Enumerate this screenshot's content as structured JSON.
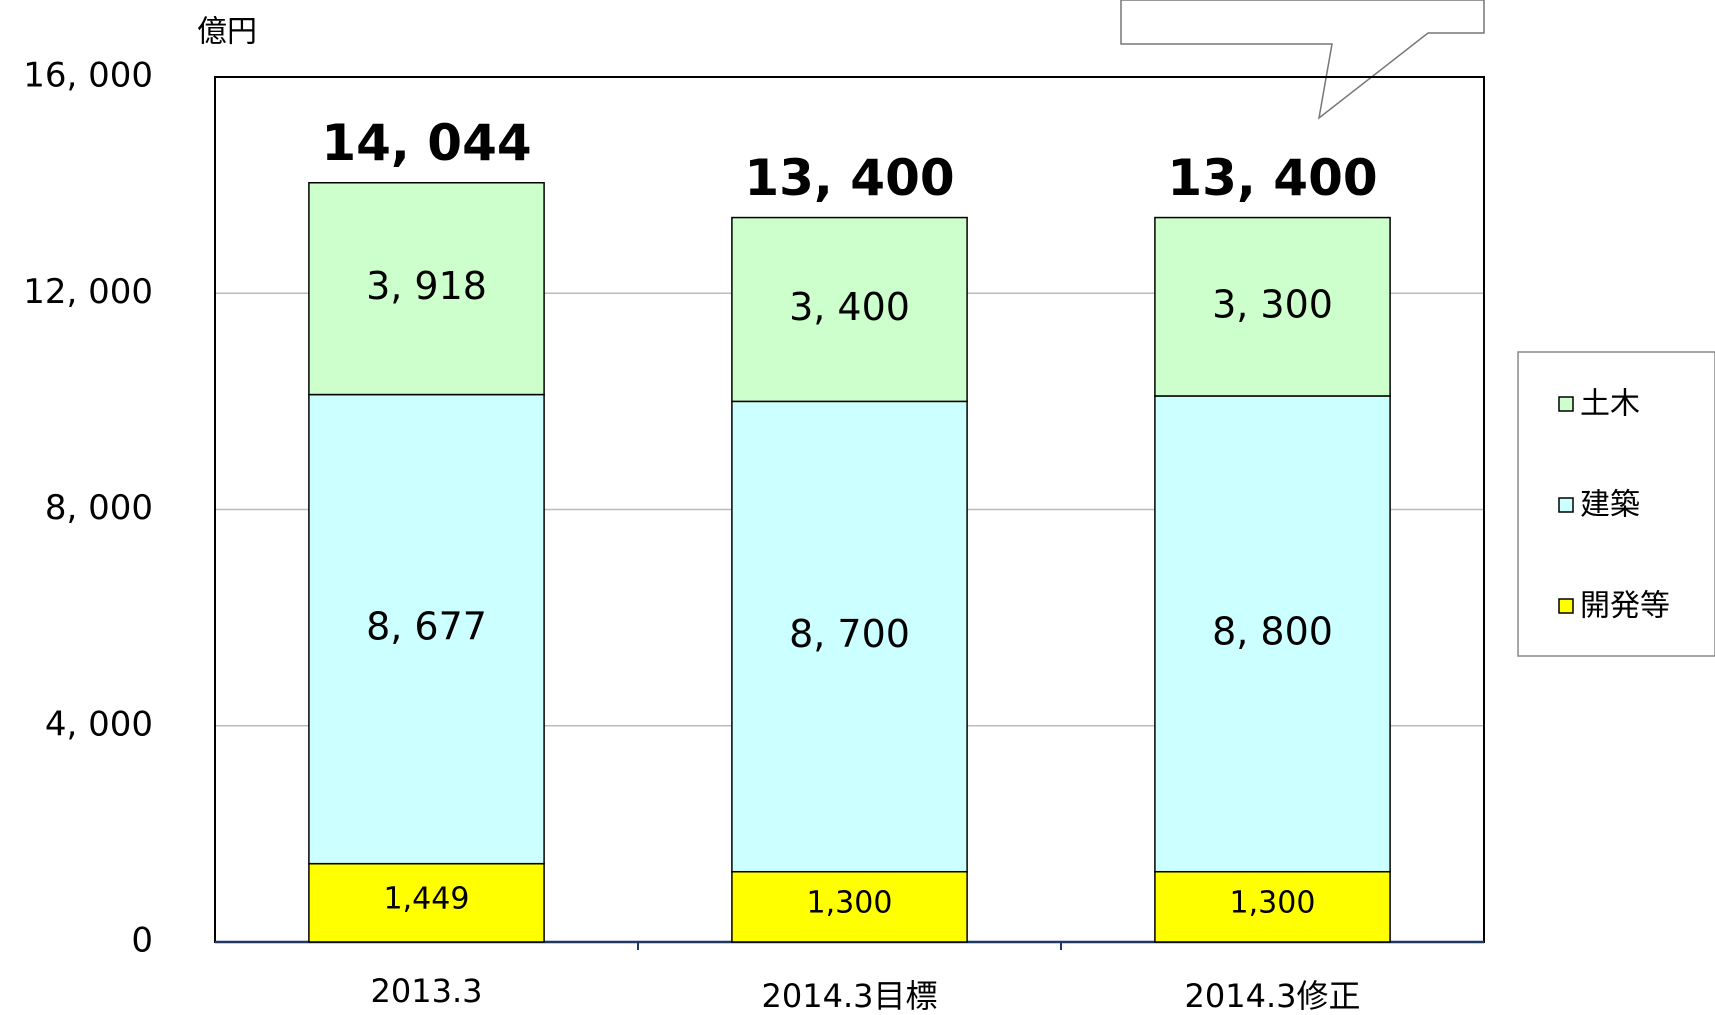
{
  "chart_data": {
    "type": "stacked_bar",
    "y_label": "億円",
    "categories": [
      "2013.3",
      "2014.3目標",
      "2014.3修正"
    ],
    "series": [
      {
        "name": "開発等",
        "color": "#ffff00",
        "values": [
          1449,
          1300,
          1300
        ],
        "value_labels": [
          "1,449",
          "1,300",
          "1,300"
        ]
      },
      {
        "name": "建築",
        "color": "#ccffff",
        "values": [
          8677,
          8700,
          8800
        ],
        "value_labels": [
          "8, 677",
          "8, 700",
          "8, 800"
        ]
      },
      {
        "name": "土木",
        "color": "#ccffcc",
        "values": [
          3918,
          3400,
          3300
        ],
        "value_labels": [
          "3, 918",
          "3, 400",
          "3, 300"
        ]
      }
    ],
    "totals": [
      14044,
      13400,
      13400
    ],
    "total_labels": [
      "14, 044",
      "13, 400",
      "13, 400"
    ],
    "ylim": [
      0,
      16000
    ],
    "yticks": [
      0,
      {
        "value": 4000,
        "label": "4, 000"
      },
      {
        "value": 8000,
        "label": "8, 000"
      },
      {
        "value": 12000,
        "label": "12, 000"
      },
      {
        "value": 16000,
        "label": "16, 000"
      }
    ],
    "grid": true,
    "legend": "right"
  }
}
